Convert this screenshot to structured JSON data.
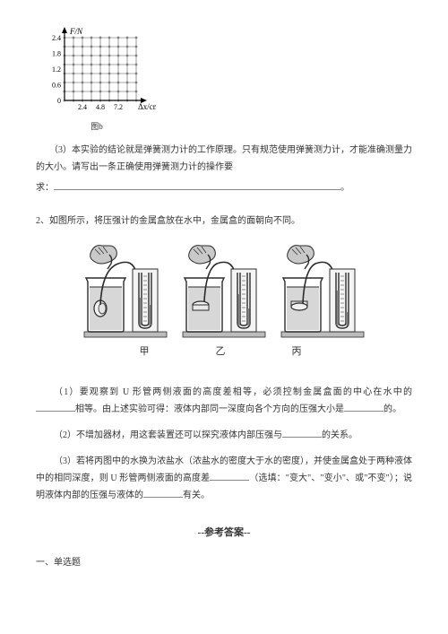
{
  "graph": {
    "yAxisLabel": "F/N",
    "yTicks": [
      "2.4",
      "1.8",
      "1.2",
      "0.6",
      "0"
    ],
    "xAxisLabel": "Δx/cm",
    "xTicks": [
      "2.4",
      "4.8",
      "7.2"
    ],
    "caption": "图b",
    "gridColor": "#555555",
    "cellSize": 10,
    "cols": 8,
    "rows": 7,
    "tickFontSize": 8
  },
  "q3": {
    "text_a": "（3）本实验的结论就是弹簧测力计的工作原理。只有规范使用弹簧测力计，才能准确测量力的大小。请写出一条正确使用弹簧测力计的操作要",
    "text_b": "求：",
    "tail": "。"
  },
  "q2Intro": "2、如图所示，将压强计的金属盒放在水中，金属盒的面朝向不同。",
  "beakers": {
    "labels": [
      "甲",
      "乙",
      "丙"
    ],
    "boxOrientations": [
      "side",
      "up",
      "down"
    ],
    "beakerFill": "#d7d7d7",
    "outline": "#2b2b2b",
    "handFill": "#c9c9c9"
  },
  "sub1": {
    "a": "（1）要观察到 U 形管两侧液面的高度差相等，必须控制金属盒面的中心在水中的",
    "b": "相等。由上述实验可得：液体内部同一深度向各个方向的压强大小是",
    "c": "的。"
  },
  "sub2": {
    "a": "（2）不增加器材，用这套装置还可以探究液体内部压强与",
    "b": "的关系。"
  },
  "sub3": {
    "a": "（3）若将丙图中的水换为浓盐水（浓盐水的密度大于水的密度），并使金属盒处于两种液体中的相同深度，则 U 形管两侧液面的高度差",
    "b": "（选填：\"变大\"、\"变小\"、或\"不变\"）；说明液体内部的压强与液体的",
    "c": "有关。"
  },
  "answerKey": "--参考答案--",
  "sectionHeading": "一、单选题"
}
